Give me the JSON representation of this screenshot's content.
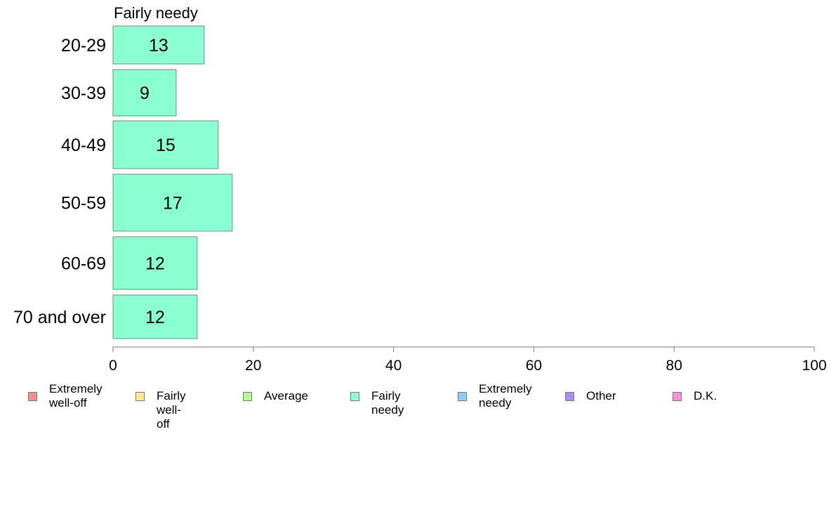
{
  "chart_data": {
    "type": "bar",
    "orientation": "horizontal",
    "title": "Fairly needy",
    "categories": [
      "20-29",
      "30-39",
      "40-49",
      "50-59",
      "60-69",
      "70 and over"
    ],
    "values": [
      13,
      9,
      15,
      17,
      12,
      12
    ],
    "xlim": [
      0,
      100
    ],
    "xticks": [
      0,
      20,
      40,
      60,
      80,
      100
    ],
    "bar_color": "#8affcf",
    "grid": false,
    "legend_placement": "bottom",
    "legend": [
      {
        "label": "Extremely\nwell-off",
        "color": "#ff8a8a"
      },
      {
        "label": "Fairly well-off",
        "color": "#ffe98a"
      },
      {
        "label": "Average",
        "color": "#b0ff8a"
      },
      {
        "label": "Fairly needy",
        "color": "#8affcf"
      },
      {
        "label": "Extremely\nneedy",
        "color": "#8acfff"
      },
      {
        "label": "Other",
        "color": "#a98aff"
      },
      {
        "label": "D.K.",
        "color": "#ff8ae0"
      }
    ]
  }
}
